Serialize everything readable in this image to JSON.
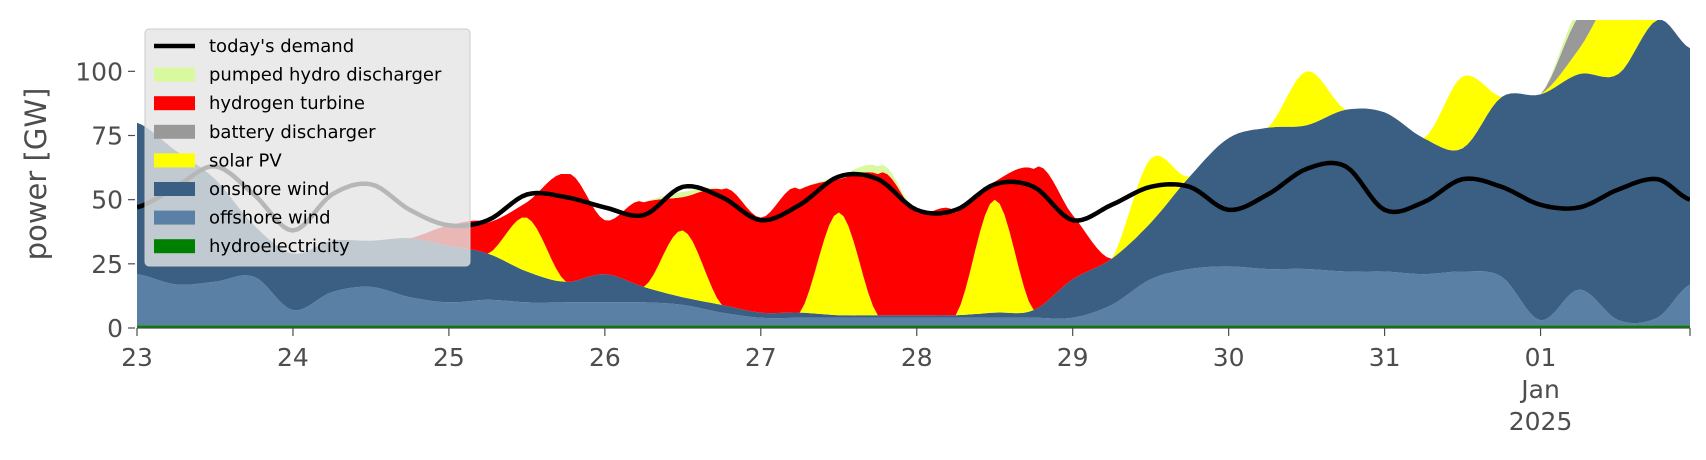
{
  "chart_data": {
    "type": "area",
    "title": "",
    "xlabel": "",
    "ylabel": "power [GW]",
    "x_tick_labels": [
      "23",
      "24",
      "25",
      "26",
      "27",
      "28",
      "29",
      "30",
      "31",
      "01\nJan\n2025"
    ],
    "y_tick_labels": [
      "0",
      "25",
      "50",
      "75",
      "100"
    ],
    "xlim": [
      "2024-12-23",
      "2025-01-01T23:00"
    ],
    "ylim": [
      0,
      120
    ],
    "stacked": true,
    "grid": false,
    "legend_position": "top-left",
    "x": [
      "2024-12-23 00:00",
      "2024-12-23 06:00",
      "2024-12-23 12:00",
      "2024-12-23 18:00",
      "2024-12-24 00:00",
      "2024-12-24 06:00",
      "2024-12-24 12:00",
      "2024-12-24 18:00",
      "2024-12-25 00:00",
      "2024-12-25 06:00",
      "2024-12-25 12:00",
      "2024-12-25 18:00",
      "2024-12-26 00:00",
      "2024-12-26 06:00",
      "2024-12-26 12:00",
      "2024-12-26 18:00",
      "2024-12-27 00:00",
      "2024-12-27 06:00",
      "2024-12-27 12:00",
      "2024-12-27 18:00",
      "2024-12-28 00:00",
      "2024-12-28 06:00",
      "2024-12-28 12:00",
      "2024-12-28 18:00",
      "2024-12-29 00:00",
      "2024-12-29 06:00",
      "2024-12-29 12:00",
      "2024-12-29 18:00",
      "2024-12-30 00:00",
      "2024-12-30 06:00",
      "2024-12-30 12:00",
      "2024-12-30 18:00",
      "2024-12-31 00:00",
      "2024-12-31 06:00",
      "2024-12-31 12:00",
      "2024-12-31 18:00",
      "2025-01-01 00:00",
      "2025-01-01 06:00",
      "2025-01-01 12:00",
      "2025-01-01 18:00",
      "2025-01-01 23:00"
    ],
    "series": [
      {
        "name": "hydroelectricity",
        "color": "#008000",
        "values": [
          1,
          1,
          1,
          1,
          1,
          1,
          1,
          1,
          1,
          1,
          1,
          1,
          1,
          1,
          1,
          1,
          1,
          1,
          1,
          1,
          1,
          1,
          1,
          1,
          1,
          1,
          1,
          1,
          1,
          1,
          1,
          1,
          1,
          1,
          1,
          1,
          1,
          1,
          1,
          1,
          1
        ]
      },
      {
        "name": "offshore wind",
        "color": "#5b80a5",
        "values": [
          20,
          16,
          17,
          19,
          6,
          13,
          15,
          11,
          9,
          10,
          9,
          9,
          9,
          9,
          8,
          5,
          3,
          3,
          3,
          3,
          3,
          3,
          3,
          3,
          3,
          8,
          18,
          22,
          23,
          22,
          22,
          21,
          21,
          20,
          21,
          19,
          2,
          14,
          2,
          3,
          16
        ]
      },
      {
        "name": "onshore wind",
        "color": "#3a5f83",
        "values": [
          59,
          52,
          40,
          20,
          22,
          20,
          18,
          23,
          22,
          18,
          12,
          8,
          11,
          6,
          3,
          3,
          2,
          2,
          1,
          1,
          1,
          1,
          2,
          3,
          15,
          18,
          22,
          36,
          50,
          55,
          56,
          63,
          62,
          53,
          48,
          70,
          88,
          84,
          96,
          116,
          92
        ]
      },
      {
        "name": "solar PV",
        "color": "#ffff00",
        "values": [
          0,
          0,
          0,
          0,
          0,
          0,
          0,
          0,
          0,
          0,
          21,
          0,
          0,
          0,
          26,
          0,
          0,
          0,
          40,
          0,
          0,
          0,
          44,
          0,
          0,
          0,
          25,
          0,
          0,
          0,
          21,
          0,
          0,
          0,
          28,
          0,
          0,
          10,
          33,
          0,
          0
        ]
      },
      {
        "name": "battery discharger",
        "color": "#999999",
        "values": [
          0,
          0,
          0,
          0,
          0,
          0,
          0,
          0,
          0,
          0,
          0,
          0,
          0,
          0,
          0,
          0,
          0,
          0,
          0,
          0,
          0,
          0,
          0,
          0,
          0,
          0,
          0,
          0,
          0,
          0,
          0,
          0,
          0,
          0,
          0,
          0,
          0,
          13,
          0,
          0,
          0
        ]
      },
      {
        "name": "hydrogen turbine",
        "color": "#ff0000",
        "values": [
          0,
          0,
          0,
          0,
          0,
          0,
          0,
          0,
          8,
          12,
          6,
          42,
          21,
          33,
          13,
          45,
          37,
          48,
          13,
          55,
          40,
          40,
          7,
          55,
          25,
          0,
          0,
          0,
          0,
          0,
          0,
          0,
          0,
          0,
          0,
          0,
          0,
          0,
          0,
          0,
          0
        ]
      },
      {
        "name": "pumped hydro discharger",
        "color": "#d9f99f",
        "values": [
          0,
          0,
          0,
          0,
          0,
          0,
          0,
          0,
          0,
          0,
          0,
          0,
          0,
          0,
          2,
          0,
          0,
          0,
          1,
          3,
          0,
          0,
          0,
          0,
          0,
          0,
          0,
          0,
          0,
          0,
          0,
          0,
          0,
          0,
          0,
          0,
          0,
          3,
          0,
          0,
          0
        ]
      }
    ],
    "demand": {
      "name": "today's demand",
      "color": "#000000",
      "values": [
        47,
        55,
        63,
        52,
        38,
        52,
        56,
        46,
        40,
        42,
        52,
        51,
        47,
        44,
        55,
        51,
        42,
        48,
        59,
        58,
        46,
        46,
        56,
        55,
        42,
        48,
        55,
        55,
        46,
        52,
        62,
        63,
        46,
        49,
        58,
        55,
        48,
        47,
        54,
        58,
        50
      ]
    },
    "legend_order": [
      "today's demand",
      "pumped hydro discharger",
      "hydrogen turbine",
      "battery discharger",
      "solar PV",
      "onshore wind",
      "offshore wind",
      "hydroelectricity"
    ]
  }
}
